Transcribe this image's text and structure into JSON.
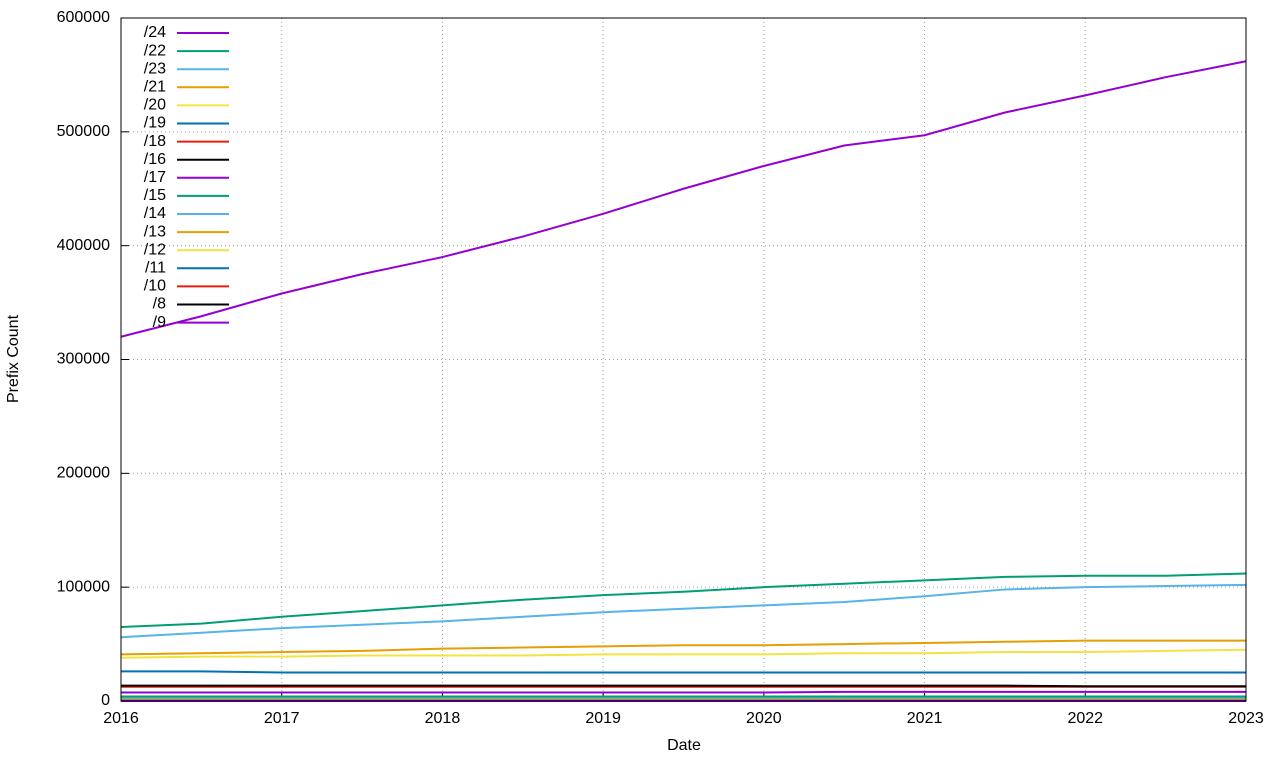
{
  "chart_data": {
    "type": "line",
    "x_label": "Date",
    "y_label": "Prefix Count",
    "xlim": [
      2016,
      2023
    ],
    "xticks": [
      2016,
      2017,
      2018,
      2019,
      2020,
      2021,
      2022,
      2023
    ],
    "ylim": [
      0,
      600000
    ],
    "yticks": [
      0,
      100000,
      200000,
      300000,
      400000,
      500000,
      600000
    ],
    "grid": true,
    "legend": "top-left",
    "x": [
      2016,
      2016.5,
      2017,
      2017.5,
      2018,
      2018.5,
      2019,
      2019.5,
      2020,
      2020.5,
      2021,
      2021.5,
      2022,
      2022.5,
      2023
    ],
    "series": [
      {
        "name": "/24",
        "color": "#9400d3",
        "values": [
          320000,
          338000,
          358000,
          375000,
          390000,
          408000,
          428000,
          450000,
          470000,
          488000,
          497000,
          517000,
          532000,
          548000,
          562000
        ]
      },
      {
        "name": "/22",
        "color": "#009e73",
        "values": [
          65000,
          68000,
          74000,
          79000,
          84000,
          89000,
          93000,
          96000,
          100000,
          103000,
          106000,
          109000,
          110000,
          110000,
          112000
        ]
      },
      {
        "name": "/23",
        "color": "#56b4e9",
        "values": [
          56000,
          60000,
          64000,
          67000,
          70000,
          74000,
          78000,
          81000,
          84000,
          87000,
          92000,
          98000,
          100000,
          101000,
          102000
        ]
      },
      {
        "name": "/21",
        "color": "#e69f00",
        "values": [
          41000,
          42000,
          43000,
          44000,
          46000,
          47000,
          48000,
          49000,
          49000,
          50000,
          51000,
          52000,
          53000,
          53000,
          53000
        ]
      },
      {
        "name": "/20",
        "color": "#f0e442",
        "values": [
          38000,
          39000,
          39000,
          40000,
          40000,
          40000,
          41000,
          41000,
          41000,
          42000,
          42000,
          43000,
          43000,
          44000,
          45000
        ]
      },
      {
        "name": "/19",
        "color": "#0072b2",
        "values": [
          26000,
          26000,
          25000,
          25000,
          25000,
          25000,
          25000,
          25000,
          25000,
          25000,
          25000,
          25000,
          25000,
          25000,
          25000
        ]
      },
      {
        "name": "/18",
        "color": "#e51e10",
        "values": [
          12500,
          12500,
          12500,
          12500,
          12500,
          12500,
          12500,
          12500,
          12500,
          12500,
          12500,
          12500,
          12500,
          12500,
          12500
        ]
      },
      {
        "name": "/16",
        "color": "#000000",
        "values": [
          13500,
          13500,
          13500,
          13500,
          13500,
          13500,
          13500,
          13500,
          13500,
          13500,
          13500,
          13500,
          13000,
          13000,
          13000
        ]
      },
      {
        "name": "/17",
        "color": "#9400d3",
        "values": [
          7500,
          7500,
          7500,
          7500,
          7500,
          7500,
          7500,
          7500,
          7500,
          8000,
          8000,
          8000,
          8000,
          8000,
          8000
        ]
      },
      {
        "name": "/15",
        "color": "#009e73",
        "values": [
          4000,
          4000,
          4000,
          4000,
          4000,
          4000,
          4000,
          4000,
          4000,
          4000,
          4000,
          4000,
          4000,
          4000,
          4000
        ]
      },
      {
        "name": "/14",
        "color": "#56b4e9",
        "values": [
          2200,
          2200,
          2200,
          2200,
          2200,
          2200,
          2200,
          2200,
          2200,
          2200,
          2200,
          2200,
          2200,
          2200,
          2200
        ]
      },
      {
        "name": "/13",
        "color": "#e69f00",
        "values": [
          1200,
          1200,
          1200,
          1200,
          1200,
          1200,
          1200,
          1200,
          1200,
          1200,
          1200,
          1200,
          1200,
          1200,
          1200
        ]
      },
      {
        "name": "/12",
        "color": "#f0e442",
        "values": [
          600,
          600,
          600,
          600,
          600,
          600,
          600,
          600,
          600,
          600,
          600,
          600,
          600,
          600,
          600
        ]
      },
      {
        "name": "/11",
        "color": "#0072b2",
        "values": [
          300,
          300,
          300,
          300,
          300,
          300,
          300,
          300,
          300,
          300,
          300,
          300,
          300,
          300,
          300
        ]
      },
      {
        "name": "/10",
        "color": "#e51e10",
        "values": [
          150,
          150,
          150,
          150,
          150,
          150,
          150,
          150,
          150,
          150,
          150,
          150,
          150,
          150,
          150
        ]
      },
      {
        "name": "/8",
        "color": "#000000",
        "values": [
          16,
          16,
          16,
          16,
          16,
          16,
          16,
          16,
          16,
          16,
          16,
          16,
          16,
          16,
          16
        ]
      },
      {
        "name": "/9",
        "color": "#9400d3",
        "values": [
          40,
          40,
          40,
          40,
          40,
          40,
          40,
          40,
          40,
          40,
          40,
          40,
          40,
          40,
          40
        ]
      }
    ]
  }
}
